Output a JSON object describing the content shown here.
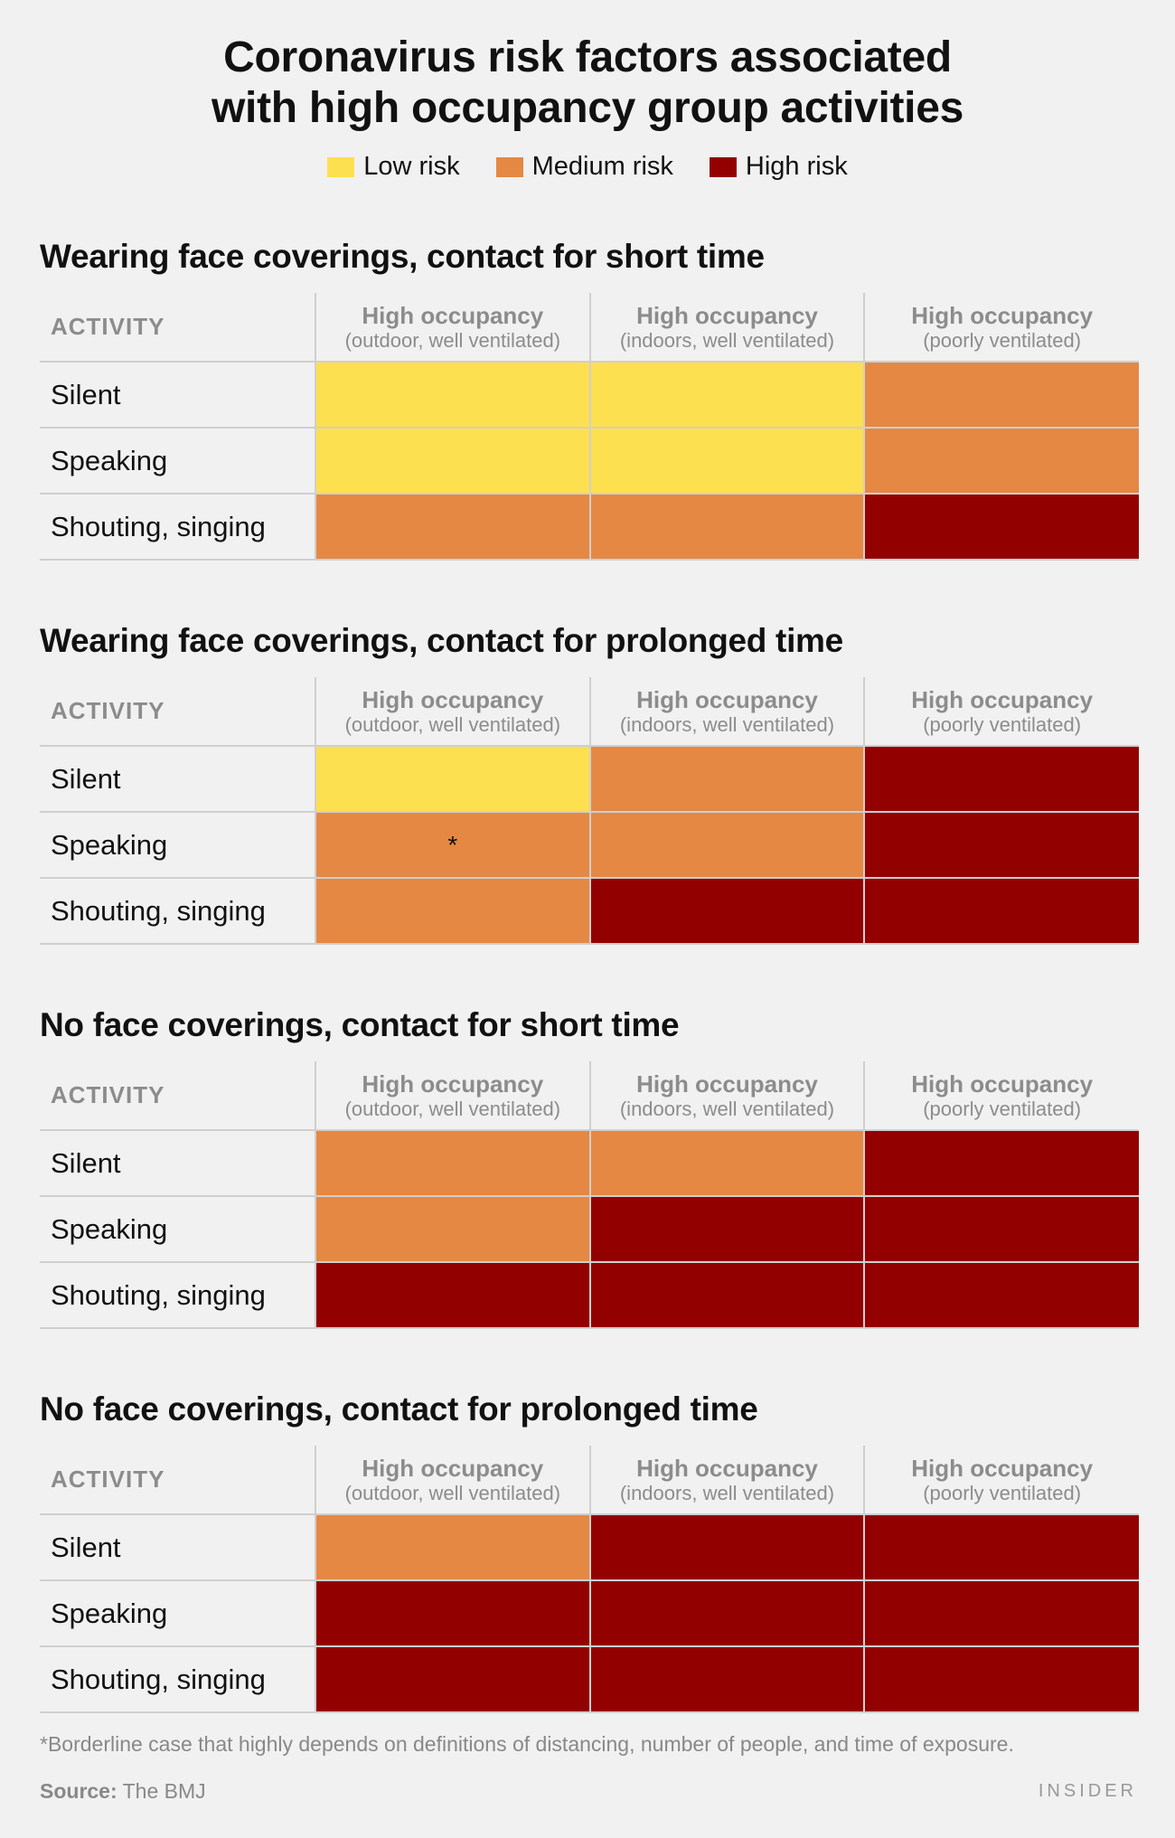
{
  "title_line1": "Coronavirus risk factors associated",
  "title_line2": "with high occupancy group activities",
  "colors": {
    "low": "#fde04f",
    "medium": "#e58844",
    "high": "#930000"
  },
  "legend": [
    {
      "key": "low",
      "label": "Low risk"
    },
    {
      "key": "medium",
      "label": "Medium risk"
    },
    {
      "key": "high",
      "label": "High risk"
    }
  ],
  "chart_data": {
    "type": "table",
    "row_header": "ACTIVITY",
    "columns": [
      {
        "title": "High occupancy",
        "sub": "(outdoor, well ventilated)"
      },
      {
        "title": "High occupancy",
        "sub": "(indoors, well ventilated)"
      },
      {
        "title": "High occupancy",
        "sub": "(poorly ventilated)"
      }
    ],
    "rows": [
      "Silent",
      "Speaking",
      "Shouting, singing"
    ],
    "tables": [
      {
        "title": "Wearing face coverings, contact for short time",
        "cells": [
          [
            "low",
            "low",
            "medium"
          ],
          [
            "low",
            "low",
            "medium"
          ],
          [
            "medium",
            "medium",
            "high"
          ]
        ],
        "marks": [
          [
            "",
            "",
            ""
          ],
          [
            "",
            "",
            ""
          ],
          [
            "",
            "",
            ""
          ]
        ]
      },
      {
        "title": "Wearing face coverings, contact for prolonged time",
        "cells": [
          [
            "low",
            "medium",
            "high"
          ],
          [
            "medium",
            "medium",
            "high"
          ],
          [
            "medium",
            "high",
            "high"
          ]
        ],
        "marks": [
          [
            "",
            "",
            ""
          ],
          [
            "*",
            "",
            ""
          ],
          [
            "",
            "",
            ""
          ]
        ]
      },
      {
        "title": "No face coverings, contact for short time",
        "cells": [
          [
            "medium",
            "medium",
            "high"
          ],
          [
            "medium",
            "high",
            "high"
          ],
          [
            "high",
            "high",
            "high"
          ]
        ],
        "marks": [
          [
            "",
            "",
            ""
          ],
          [
            "",
            "",
            ""
          ],
          [
            "",
            "",
            ""
          ]
        ]
      },
      {
        "title": "No face coverings, contact for prolonged time",
        "cells": [
          [
            "medium",
            "high",
            "high"
          ],
          [
            "high",
            "high",
            "high"
          ],
          [
            "high",
            "high",
            "high"
          ]
        ],
        "marks": [
          [
            "",
            "",
            ""
          ],
          [
            "",
            "",
            ""
          ],
          [
            "",
            "",
            ""
          ]
        ]
      }
    ]
  },
  "footnote": "*Borderline case that highly depends on definitions of distancing, number of people, and time of exposure.",
  "source_label": "Source:",
  "source_value": "The BMJ",
  "brand": "INSIDER"
}
